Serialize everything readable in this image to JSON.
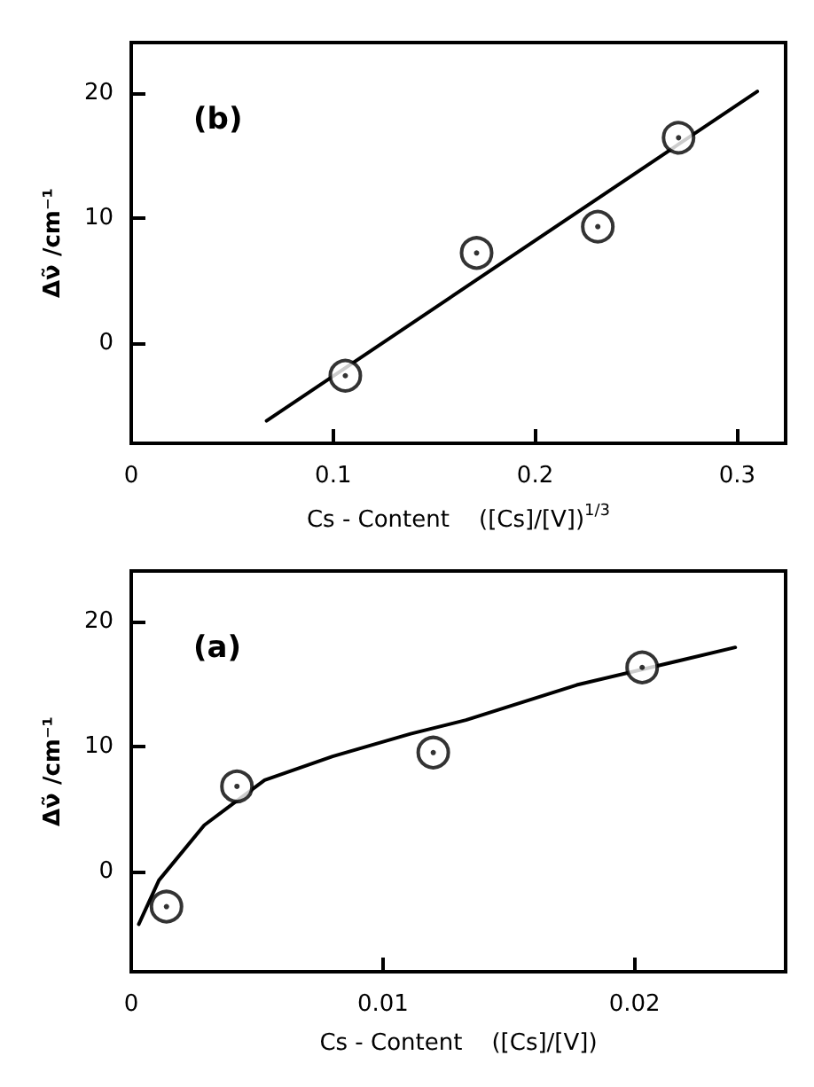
{
  "chart_data": [
    {
      "type": "scatter",
      "title": "(b)",
      "xlabel": "Cs - Content    ([Cs]/[V])$^{1/3}$",
      "ylabel": "Δν̃ /cm⁻¹",
      "xlim": [
        0,
        0.324
      ],
      "xticks": [
        0,
        0.1,
        0.2,
        0.3
      ],
      "ylim": [
        -8,
        24
      ],
      "yticks": [
        0,
        10,
        20
      ],
      "grid": false,
      "marker": "circle",
      "series": [
        {
          "color": "#000000",
          "x": [
            0.106,
            0.171,
            0.231,
            0.271
          ],
          "values": [
            -2.6,
            7.2,
            9.3,
            16.4
          ]
        },
        {
          "type": "line",
          "color": "#000000",
          "marker": "none",
          "line_style": "solid",
          "x": [
            0.067,
            0.31
          ],
          "values": [
            -6.2,
            20.1
          ]
        }
      ]
    },
    {
      "type": "scatter",
      "title": "(a)",
      "xlabel": "Cs - Content    ([Cs]/[V])",
      "ylabel": "Δν̃ /cm⁻¹",
      "xlim": [
        0,
        0.026
      ],
      "xticks": [
        0,
        0.01,
        0.02
      ],
      "ylim": [
        -8,
        24
      ],
      "yticks": [
        0,
        10,
        20
      ],
      "grid": false,
      "marker": "circle",
      "series": [
        {
          "color": "#000000",
          "x": [
            0.0014,
            0.0042,
            0.012,
            0.0203
          ],
          "values": [
            -2.8,
            6.8,
            9.5,
            16.3
          ]
        },
        {
          "type": "line",
          "color": "#000000",
          "marker": "none",
          "line_style": "solid",
          "x": [
            0.0003,
            0.0011,
            0.0029,
            0.0053,
            0.008,
            0.0111,
            0.0133,
            0.0177,
            0.024
          ],
          "values": [
            -4.2,
            -0.7,
            3.7,
            7.3,
            9.2,
            11.0,
            12.1,
            14.9,
            17.9
          ]
        }
      ]
    }
  ]
}
